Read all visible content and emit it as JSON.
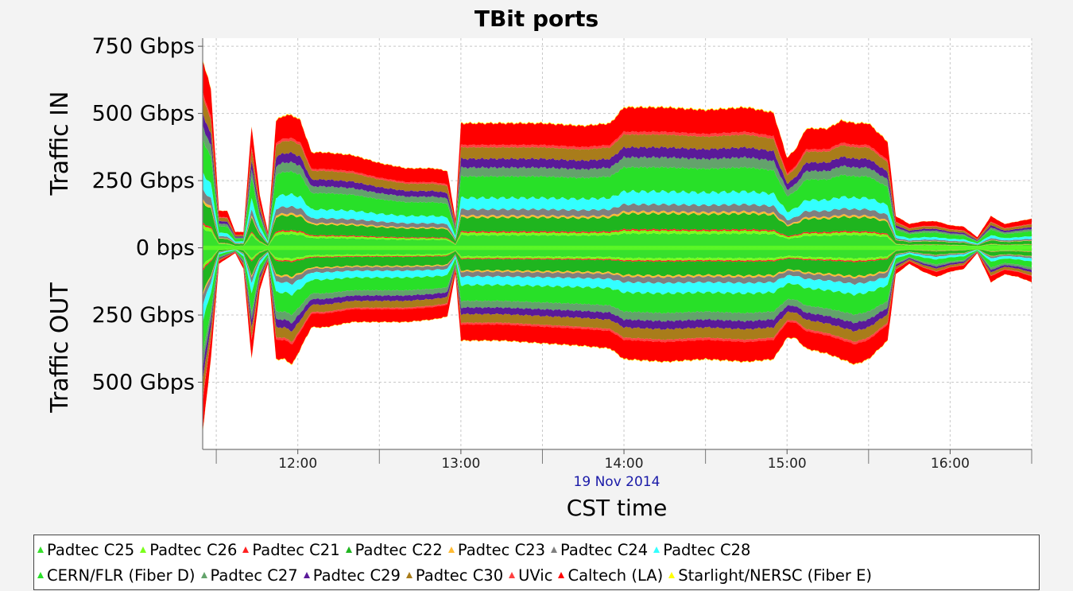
{
  "chart_data": {
    "type": "area",
    "title": "TBit ports",
    "ylabel_in": "Traffic IN",
    "ylabel_out": "Traffic OUT",
    "xlabel": "CST time",
    "date_label": "19 Nov 2014",
    "y_ticks": [
      {
        "value": 750,
        "label": "750 Gbps"
      },
      {
        "value": 500,
        "label": "500 Gbps"
      },
      {
        "value": 250,
        "label": "250 Gbps"
      },
      {
        "value": 0,
        "label": "0 bps"
      },
      {
        "value": -250,
        "label": "250 Gbps"
      },
      {
        "value": -500,
        "label": "500 Gbps"
      }
    ],
    "ylim": [
      -750,
      780
    ],
    "xlim": [
      "11:25",
      "16:30"
    ],
    "x_ticks": [
      {
        "value": "12:00",
        "label": "12:00"
      },
      {
        "value": "13:00",
        "label": "13:00"
      },
      {
        "value": "14:00",
        "label": "14:00"
      },
      {
        "value": "15:00",
        "label": "15:00"
      },
      {
        "value": "16:00",
        "label": "16:00"
      }
    ],
    "grid": true,
    "legend_position": "bottom",
    "units": "Gbps",
    "in_profile": {
      "x": [
        "11:25",
        "11:28",
        "11:31",
        "11:34",
        "11:37",
        "11:40",
        "11:43",
        "11:46",
        "11:49",
        "11:52",
        "11:55",
        "11:58",
        "12:01",
        "12:05",
        "12:10",
        "12:20",
        "12:30",
        "12:40",
        "12:50",
        "12:55",
        "12:58",
        "13:00",
        "13:05",
        "13:15",
        "13:30",
        "13:45",
        "13:55",
        "14:00",
        "14:15",
        "14:30",
        "14:45",
        "14:55",
        "15:00",
        "15:03",
        "15:07",
        "15:15",
        "15:20",
        "15:25",
        "15:30",
        "15:37",
        "15:40",
        "15:45",
        "15:50",
        "15:55",
        "16:00",
        "16:05",
        "16:10",
        "16:15",
        "16:20",
        "16:25",
        "16:30"
      ],
      "y": [
        710,
        600,
        140,
        140,
        60,
        60,
        460,
        200,
        60,
        480,
        500,
        500,
        480,
        360,
        360,
        350,
        320,
        300,
        300,
        290,
        110,
        470,
        470,
        470,
        470,
        460,
        470,
        530,
        530,
        520,
        530,
        510,
        340,
        370,
        450,
        450,
        480,
        470,
        470,
        400,
        120,
        90,
        100,
        100,
        85,
        80,
        40,
        120,
        90,
        100,
        110
      ]
    },
    "out_profile": {
      "x": [
        "11:25",
        "11:28",
        "11:31",
        "11:34",
        "11:37",
        "11:40",
        "11:43",
        "11:46",
        "11:49",
        "11:52",
        "11:55",
        "11:58",
        "12:01",
        "12:05",
        "12:10",
        "12:20",
        "12:30",
        "12:40",
        "12:50",
        "12:55",
        "12:58",
        "13:00",
        "13:05",
        "13:15",
        "13:30",
        "13:45",
        "13:55",
        "14:00",
        "14:15",
        "14:30",
        "14:45",
        "14:55",
        "15:00",
        "15:03",
        "15:07",
        "15:15",
        "15:20",
        "15:25",
        "15:30",
        "15:37",
        "15:40",
        "15:45",
        "15:50",
        "15:55",
        "16:00",
        "16:05",
        "16:10",
        "16:15",
        "16:20",
        "16:25",
        "16:30"
      ],
      "y": [
        -700,
        -420,
        -60,
        -40,
        -20,
        -80,
        -420,
        -160,
        -60,
        -420,
        -420,
        -440,
        -380,
        -300,
        -300,
        -280,
        -280,
        -280,
        -270,
        -260,
        -100,
        -350,
        -350,
        -350,
        -360,
        -370,
        -380,
        -420,
        -430,
        -420,
        -430,
        -420,
        -340,
        -340,
        -380,
        -400,
        -420,
        -440,
        -420,
        -350,
        -100,
        -60,
        -90,
        -110,
        -90,
        -80,
        -20,
        -130,
        -100,
        -110,
        -130
      ]
    },
    "series": [
      {
        "name": "Padtec C25",
        "color": "#37e02c",
        "in_share": 0.1,
        "out_share": 0.09
      },
      {
        "name": "Padtec C26",
        "color": "#7aff1a",
        "in_share": 0.02,
        "out_share": 0.02
      },
      {
        "name": "Padtec C21",
        "color": "#ff2020",
        "in_share": 0.01,
        "out_share": 0.01
      },
      {
        "name": "Padtec C22",
        "color": "#1fb51f",
        "in_share": 0.11,
        "out_share": 0.12
      },
      {
        "name": "Padtec C23",
        "color": "#ffbb33",
        "in_share": 0.015,
        "out_share": 0.015
      },
      {
        "name": "Padtec C24",
        "color": "#7f7f7f",
        "in_share": 0.05,
        "out_share": 0.05
      },
      {
        "name": "Padtec C28",
        "color": "#33ffff",
        "in_share": 0.09,
        "out_share": 0.09
      },
      {
        "name": "CERN/FLR (Fiber D)",
        "color": "#28e028",
        "in_share": 0.17,
        "out_share": 0.17
      },
      {
        "name": "Padtec C27",
        "color": "#63a36b",
        "in_share": 0.07,
        "out_share": 0.07
      },
      {
        "name": "Padtec C29",
        "color": "#5a1a99",
        "in_share": 0.07,
        "out_share": 0.07
      },
      {
        "name": "Padtec C30",
        "color": "#a97c1a",
        "in_share": 0.09,
        "out_share": 0.09
      },
      {
        "name": "UVic",
        "color": "#ff4040",
        "in_share": 0.02,
        "out_share": 0.02
      },
      {
        "name": "Caltech (LA)",
        "color": "#ff0000",
        "in_share": 0.17,
        "out_share": 0.17
      },
      {
        "name": "Starlight/NERSC (Fiber E)",
        "color": "#ffff00",
        "in_share": 0.005,
        "out_share": 0.005
      }
    ]
  },
  "legend": {
    "rows": [
      [
        {
          "label": "Padtec C25",
          "color": "#37e02c"
        },
        {
          "label": "Padtec C26",
          "color": "#7aff1a"
        },
        {
          "label": "Padtec C21",
          "color": "#ff2020"
        },
        {
          "label": "Padtec C22",
          "color": "#1fb51f"
        },
        {
          "label": "Padtec C23",
          "color": "#ffbb33"
        },
        {
          "label": "Padtec C24",
          "color": "#7f7f7f"
        },
        {
          "label": "Padtec C28",
          "color": "#33ffff"
        }
      ],
      [
        {
          "label": "CERN/FLR (Fiber D)",
          "color": "#28e028"
        },
        {
          "label": "Padtec C27",
          "color": "#63a36b"
        },
        {
          "label": "Padtec C29",
          "color": "#5a1a99"
        },
        {
          "label": "Padtec C30",
          "color": "#a97c1a"
        },
        {
          "label": "UVic",
          "color": "#ff4040"
        },
        {
          "label": "Caltech (LA)",
          "color": "#ff0000"
        },
        {
          "label": "Starlight/NERSC (Fiber E)",
          "color": "#ffff00"
        }
      ]
    ]
  },
  "colors": {
    "background": "#f3f3f3",
    "plot_background": "#ffffff",
    "grid": "#c8c8c8",
    "baseline_green": "#66ff22"
  }
}
